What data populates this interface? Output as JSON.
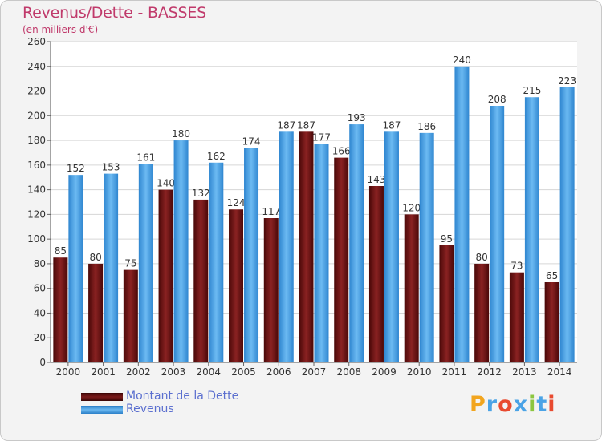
{
  "header": {
    "title": "Revenus/Dette - BASSES",
    "subtitle": "(en milliers d'€)"
  },
  "chart_data": {
    "type": "bar",
    "categories": [
      "2000",
      "2001",
      "2002",
      "2003",
      "2004",
      "2005",
      "2006",
      "2007",
      "2008",
      "2009",
      "2010",
      "2011",
      "2012",
      "2013",
      "2014"
    ],
    "series": [
      {
        "name": "Montant de la Dette",
        "values": [
          85,
          80,
          75,
          140,
          132,
          124,
          117,
          187,
          166,
          143,
          120,
          95,
          80,
          73,
          65
        ],
        "color": "#7a1a1a"
      },
      {
        "name": "Revenus",
        "values": [
          152,
          153,
          161,
          180,
          162,
          174,
          187,
          177,
          193,
          187,
          186,
          240,
          208,
          215,
          223
        ],
        "color": "#4aa3e6"
      }
    ],
    "ylim": [
      0,
      260
    ],
    "yticks": [
      "0",
      "20",
      "40",
      "60",
      "80",
      "100",
      "120",
      "140",
      "160",
      "180",
      "200",
      "220",
      "240",
      "260"
    ],
    "grid": true,
    "legend_position": "bottom-left"
  },
  "brand": {
    "name": "Proxiti",
    "letters": [
      "P",
      "r",
      "o",
      "x",
      "i",
      "t",
      "i"
    ],
    "colors": [
      "#f2a51e",
      "#4aa3e6",
      "#e84a2f",
      "#4aa3e6",
      "#8cc63f",
      "#4aa3e6",
      "#e84a2f"
    ]
  }
}
